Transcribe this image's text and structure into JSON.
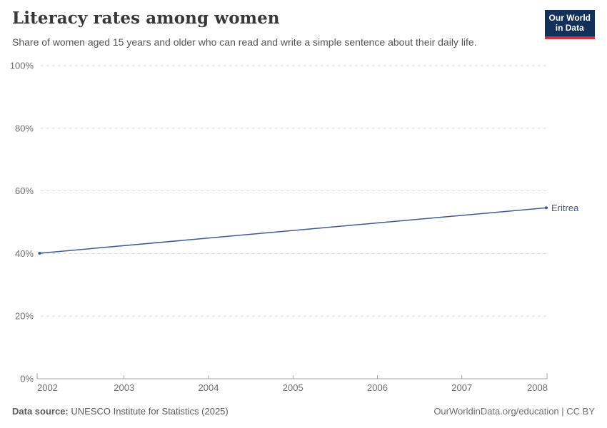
{
  "header": {
    "title": "Literacy rates among women",
    "subtitle": "Share of women aged 15 years and older who can read and write a simple sentence about their daily life.",
    "logo": {
      "line1": "Our World",
      "line2": "in Data",
      "bg_color": "#12305a",
      "accent_color": "#d0343a",
      "text_color": "#ffffff"
    }
  },
  "chart_data": {
    "type": "line",
    "title": "Literacy rates among women",
    "xlabel": "",
    "ylabel": "",
    "xlim": [
      2002,
      2008
    ],
    "ylim": [
      0,
      100
    ],
    "grid": "horizontal-dashed",
    "legend": "line-end-label",
    "x_ticks": [
      2002,
      2003,
      2004,
      2005,
      2006,
      2007,
      2008
    ],
    "y_ticks": [
      0,
      20,
      40,
      60,
      80,
      100
    ],
    "y_suffix": "%",
    "series": [
      {
        "name": "Eritrea",
        "color": "#3c5a96",
        "points": [
          [
            2002,
            40.1
          ],
          [
            2008,
            54.6
          ]
        ]
      }
    ]
  },
  "footer": {
    "source_label": "Data source:",
    "source_value": "UNESCO Institute for Statistics (2025)",
    "attribution": "OurWorldinData.org/education | CC BY"
  }
}
